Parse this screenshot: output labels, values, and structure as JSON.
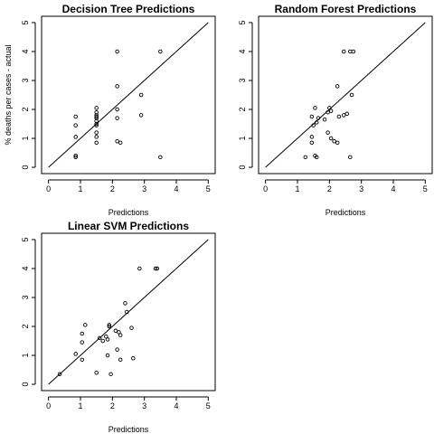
{
  "chart_data": [
    {
      "type": "scatter",
      "title": "Decision Tree Predictions",
      "xlabel": "Predictions",
      "ylabel": "% deaths per cases - actual",
      "xlim": [
        0,
        5
      ],
      "ylim": [
        0,
        5
      ],
      "xticks": [
        "0",
        "1",
        "2",
        "3",
        "4",
        "5"
      ],
      "yticks": [
        "0",
        "1",
        "2",
        "3",
        "4",
        "5"
      ],
      "reference_line": "y = x",
      "grid": false,
      "points": [
        {
          "x": 0.85,
          "y": 1.75
        },
        {
          "x": 0.85,
          "y": 1.45
        },
        {
          "x": 0.85,
          "y": 1.05
        },
        {
          "x": 0.85,
          "y": 0.4
        },
        {
          "x": 0.85,
          "y": 0.35
        },
        {
          "x": 1.5,
          "y": 2.05
        },
        {
          "x": 1.5,
          "y": 1.9
        },
        {
          "x": 1.5,
          "y": 1.8
        },
        {
          "x": 1.5,
          "y": 1.75
        },
        {
          "x": 1.5,
          "y": 1.7
        },
        {
          "x": 1.5,
          "y": 1.6
        },
        {
          "x": 1.5,
          "y": 1.5
        },
        {
          "x": 1.5,
          "y": 1.45
        },
        {
          "x": 1.5,
          "y": 1.2
        },
        {
          "x": 1.5,
          "y": 1.05
        },
        {
          "x": 1.5,
          "y": 0.85
        },
        {
          "x": 2.15,
          "y": 4.0
        },
        {
          "x": 2.15,
          "y": 2.8
        },
        {
          "x": 2.15,
          "y": 2.0
        },
        {
          "x": 2.15,
          "y": 1.7
        },
        {
          "x": 2.15,
          "y": 0.9
        },
        {
          "x": 2.25,
          "y": 0.85
        },
        {
          "x": 2.9,
          "y": 2.5
        },
        {
          "x": 2.9,
          "y": 1.8
        },
        {
          "x": 3.5,
          "y": 4.0
        },
        {
          "x": 3.5,
          "y": 0.35
        }
      ]
    },
    {
      "type": "scatter",
      "title": "Random Forest Predictions",
      "xlabel": "Predictions",
      "ylabel": "",
      "xlim": [
        0,
        5
      ],
      "ylim": [
        0,
        5
      ],
      "xticks": [
        "0",
        "1",
        "2",
        "3",
        "4",
        "5"
      ],
      "yticks": [
        "0",
        "1",
        "2",
        "3",
        "4",
        "5"
      ],
      "reference_line": "y = x",
      "grid": false,
      "points": [
        {
          "x": 2.45,
          "y": 4.0
        },
        {
          "x": 2.65,
          "y": 4.0
        },
        {
          "x": 2.75,
          "y": 4.0
        },
        {
          "x": 2.25,
          "y": 2.8
        },
        {
          "x": 2.7,
          "y": 2.5
        },
        {
          "x": 1.55,
          "y": 2.05
        },
        {
          "x": 2.0,
          "y": 2.05
        },
        {
          "x": 2.05,
          "y": 1.95
        },
        {
          "x": 1.95,
          "y": 1.9
        },
        {
          "x": 2.3,
          "y": 1.75
        },
        {
          "x": 2.45,
          "y": 1.8
        },
        {
          "x": 2.55,
          "y": 1.85
        },
        {
          "x": 1.45,
          "y": 1.75
        },
        {
          "x": 1.65,
          "y": 1.7
        },
        {
          "x": 1.85,
          "y": 1.65
        },
        {
          "x": 1.6,
          "y": 1.55
        },
        {
          "x": 1.5,
          "y": 1.45
        },
        {
          "x": 1.95,
          "y": 1.2
        },
        {
          "x": 1.45,
          "y": 1.05
        },
        {
          "x": 2.05,
          "y": 1.0
        },
        {
          "x": 2.15,
          "y": 0.9
        },
        {
          "x": 2.25,
          "y": 0.85
        },
        {
          "x": 1.45,
          "y": 0.85
        },
        {
          "x": 1.55,
          "y": 0.4
        },
        {
          "x": 1.6,
          "y": 0.35
        },
        {
          "x": 1.25,
          "y": 0.35
        },
        {
          "x": 2.65,
          "y": 0.35
        }
      ]
    },
    {
      "type": "scatter",
      "title": "Linear SVM Predictions",
      "xlabel": "Predictions",
      "ylabel": "",
      "xlim": [
        0,
        5
      ],
      "ylim": [
        0,
        5
      ],
      "xticks": [
        "0",
        "1",
        "2",
        "3",
        "4",
        "5"
      ],
      "yticks": [
        "0",
        "1",
        "2",
        "3",
        "4",
        "5"
      ],
      "reference_line": "y = x",
      "grid": false,
      "points": [
        {
          "x": 2.85,
          "y": 4.0
        },
        {
          "x": 3.35,
          "y": 4.0
        },
        {
          "x": 3.4,
          "y": 4.0
        },
        {
          "x": 2.4,
          "y": 2.8
        },
        {
          "x": 2.45,
          "y": 2.5
        },
        {
          "x": 1.15,
          "y": 2.05
        },
        {
          "x": 1.9,
          "y": 2.05
        },
        {
          "x": 1.9,
          "y": 2.0
        },
        {
          "x": 2.6,
          "y": 1.95
        },
        {
          "x": 2.1,
          "y": 1.85
        },
        {
          "x": 2.2,
          "y": 1.8
        },
        {
          "x": 1.05,
          "y": 1.75
        },
        {
          "x": 2.25,
          "y": 1.7
        },
        {
          "x": 1.8,
          "y": 1.65
        },
        {
          "x": 1.6,
          "y": 1.6
        },
        {
          "x": 1.85,
          "y": 1.55
        },
        {
          "x": 1.7,
          "y": 1.5
        },
        {
          "x": 1.05,
          "y": 1.45
        },
        {
          "x": 2.15,
          "y": 1.2
        },
        {
          "x": 0.85,
          "y": 1.05
        },
        {
          "x": 1.85,
          "y": 1.0
        },
        {
          "x": 2.65,
          "y": 0.9
        },
        {
          "x": 1.05,
          "y": 0.85
        },
        {
          "x": 2.25,
          "y": 0.85
        },
        {
          "x": 1.5,
          "y": 0.4
        },
        {
          "x": 0.35,
          "y": 0.35
        },
        {
          "x": 1.95,
          "y": 0.35
        }
      ]
    }
  ]
}
